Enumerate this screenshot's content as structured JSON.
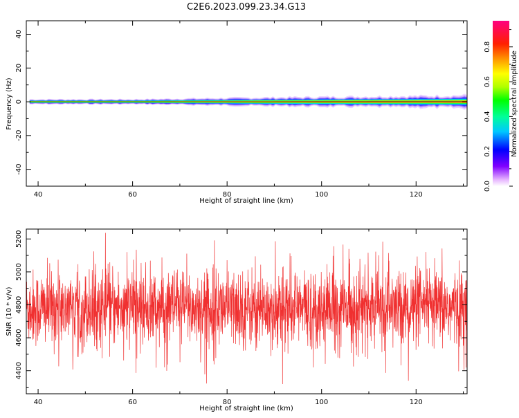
{
  "title": "C2E6.2023.099.23.34.G13",
  "chart_data": [
    {
      "type": "heatmap",
      "xlabel": "Height of straight line (km)",
      "ylabel": "Frequency (Hz)",
      "xlim": [
        37.5,
        130.8
      ],
      "ylim": [
        -50,
        48
      ],
      "xticks": [
        40,
        60,
        80,
        100,
        120
      ],
      "yticks": [
        -40,
        -20,
        0,
        20,
        40
      ],
      "ytick_labels": [
        "-40",
        "-20",
        "0",
        "20",
        "40"
      ],
      "band_center_hz": 0,
      "band_halfwidth_hz": [
        {
          "x": 38,
          "hz": 1.5
        },
        {
          "x": 60,
          "hz": 1.5
        },
        {
          "x": 85,
          "hz": 2.5
        },
        {
          "x": 100,
          "hz": 3.0
        },
        {
          "x": 120,
          "hz": 3.5
        },
        {
          "x": 130.8,
          "hz": 4.0
        }
      ],
      "colorbar": {
        "label": "Normalized spectral amplitude",
        "range": [
          0,
          0.95
        ],
        "ticks": [
          0.0,
          0.2,
          0.4,
          0.6,
          0.8
        ],
        "tick_labels": [
          "0.0",
          "0.2",
          "0.4",
          "0.6",
          "0.8"
        ],
        "colormap": "gist_rainbow_r"
      },
      "grid": false
    },
    {
      "type": "line",
      "xlabel": "Height of straight line (km)",
      "ylabel": "SNR (10 * v/v)",
      "xlim": [
        37.5,
        130.8
      ],
      "ylim": [
        4260,
        5260
      ],
      "xticks": [
        40,
        60,
        80,
        100,
        120
      ],
      "yticks": [
        4400,
        4600,
        4800,
        5000,
        5200
      ],
      "series_color": "#f03030",
      "series_summary": {
        "mean": 4780,
        "typical_range": [
          4560,
          5000
        ],
        "max": 5260,
        "min": 4260
      },
      "grid": false
    }
  ]
}
